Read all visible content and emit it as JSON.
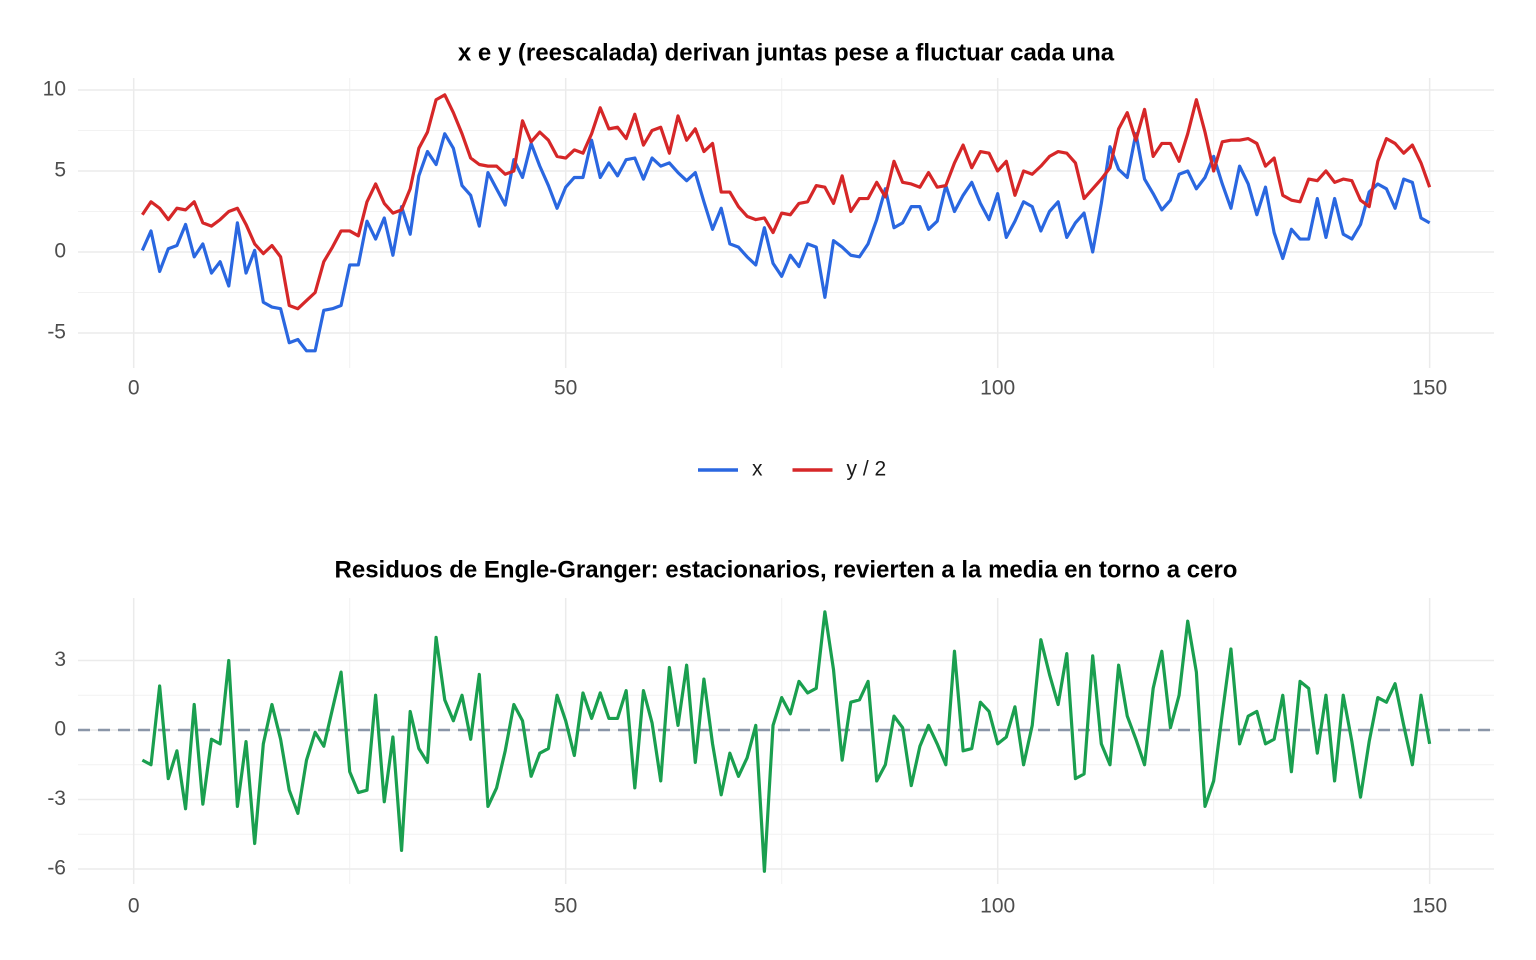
{
  "chart_data": [
    {
      "type": "line",
      "title": "x e y (reescalada) derivan juntas pese a fluctuar cada una",
      "x": [
        1,
        2,
        3,
        4,
        5,
        6,
        7,
        8,
        9,
        10,
        11,
        12,
        13,
        14,
        15,
        16,
        17,
        18,
        19,
        20,
        21,
        22,
        23,
        24,
        25,
        26,
        27,
        28,
        29,
        30,
        31,
        32,
        33,
        34,
        35,
        36,
        37,
        38,
        39,
        40,
        41,
        42,
        43,
        44,
        45,
        46,
        47,
        48,
        49,
        50,
        51,
        52,
        53,
        54,
        55,
        56,
        57,
        58,
        59,
        60,
        61,
        62,
        63,
        64,
        65,
        66,
        67,
        68,
        69,
        70,
        71,
        72,
        73,
        74,
        75,
        76,
        77,
        78,
        79,
        80,
        81,
        82,
        83,
        84,
        85,
        86,
        87,
        88,
        89,
        90,
        91,
        92,
        93,
        94,
        95,
        96,
        97,
        98,
        99,
        100,
        101,
        102,
        103,
        104,
        105,
        106,
        107,
        108,
        109,
        110,
        111,
        112,
        113,
        114,
        115,
        116,
        117,
        118,
        119,
        120,
        121,
        122,
        123,
        124,
        125,
        126,
        127,
        128,
        129,
        130,
        131,
        132,
        133,
        134,
        135,
        136,
        137,
        138,
        139,
        140,
        141,
        142,
        143,
        144,
        145,
        146,
        147,
        148,
        149,
        150
      ],
      "series": [
        {
          "name": "x",
          "color": "#2a67e0",
          "values": [
            0.1,
            1.3,
            -1.2,
            0.2,
            0.4,
            1.7,
            -0.3,
            0.5,
            -1.3,
            -0.6,
            -2.1,
            1.8,
            -1.3,
            0.1,
            -3.1,
            -3.4,
            -3.5,
            -5.6,
            -5.4,
            -6.1,
            -6.1,
            -3.6,
            -3.5,
            -3.3,
            -0.8,
            -0.8,
            1.9,
            0.8,
            2.1,
            -0.2,
            2.8,
            1.1,
            4.7,
            6.2,
            5.4,
            7.3,
            6.4,
            4.1,
            3.5,
            1.6,
            4.9,
            3.9,
            2.9,
            5.7,
            4.6,
            6.7,
            5.3,
            4.1,
            2.7,
            4.0,
            4.6,
            4.6,
            6.9,
            4.6,
            5.5,
            4.7,
            5.7,
            5.8,
            4.5,
            5.8,
            5.3,
            5.5,
            4.9,
            4.4,
            4.9,
            3.1,
            1.4,
            2.7,
            0.5,
            0.3,
            -0.3,
            -0.8,
            1.5,
            -0.7,
            -1.5,
            -0.2,
            -0.9,
            0.5,
            0.3,
            -2.8,
            0.7,
            0.3,
            -0.2,
            -0.3,
            0.5,
            2.0,
            3.9,
            1.5,
            1.8,
            2.8,
            2.8,
            1.4,
            1.9,
            4.1,
            2.5,
            3.5,
            4.3,
            3.0,
            2.0,
            3.6,
            0.9,
            1.9,
            3.1,
            2.8,
            1.3,
            2.5,
            3.1,
            0.9,
            1.8,
            2.4,
            0.0,
            3.0,
            6.5,
            5.1,
            4.6,
            7.3,
            4.5,
            3.6,
            2.6,
            3.2,
            4.8,
            5.0,
            3.9,
            4.6,
            5.9,
            4.2,
            2.7,
            5.3,
            4.2,
            2.3,
            4.0,
            1.2,
            -0.4,
            1.4,
            0.8,
            0.8,
            3.3,
            0.9,
            3.3,
            1.1,
            0.8,
            1.7,
            3.7,
            4.2,
            3.9,
            2.7,
            4.5,
            4.3,
            2.1,
            1.8
          ]
        },
        {
          "name": "y / 2",
          "color": "#d62728",
          "values": [
            2.3,
            3.1,
            2.7,
            2.0,
            2.7,
            2.6,
            3.1,
            1.8,
            1.6,
            2.0,
            2.5,
            2.7,
            1.7,
            0.5,
            -0.1,
            0.4,
            -0.3,
            -3.3,
            -3.5,
            -3.0,
            -2.5,
            -0.6,
            0.3,
            1.3,
            1.3,
            1.0,
            3.1,
            4.2,
            3.0,
            2.4,
            2.6,
            3.9,
            6.4,
            7.4,
            9.4,
            9.7,
            8.6,
            7.3,
            5.8,
            5.4,
            5.3,
            5.3,
            4.8,
            5.0,
            8.1,
            6.8,
            7.4,
            6.9,
            5.9,
            5.8,
            6.3,
            6.1,
            7.3,
            8.9,
            7.6,
            7.7,
            7.0,
            8.5,
            6.6,
            7.5,
            7.7,
            6.1,
            8.4,
            6.9,
            7.6,
            6.2,
            6.7,
            3.7,
            3.7,
            2.8,
            2.2,
            2.0,
            2.1,
            1.2,
            2.4,
            2.3,
            3.0,
            3.1,
            4.1,
            4.0,
            3.0,
            4.7,
            2.5,
            3.3,
            3.3,
            4.3,
            3.4,
            5.6,
            4.3,
            4.2,
            4.0,
            4.9,
            4.0,
            4.1,
            5.5,
            6.6,
            5.2,
            6.2,
            6.1,
            5.0,
            5.6,
            3.5,
            5.0,
            4.8,
            5.3,
            5.9,
            6.2,
            6.1,
            5.5,
            3.3,
            3.9,
            4.5,
            5.2,
            7.6,
            8.6,
            6.9,
            8.8,
            5.9,
            6.7,
            6.7,
            5.6,
            7.3,
            9.4,
            7.4,
            5.0,
            6.8,
            6.9,
            6.9,
            7.0,
            6.7,
            5.3,
            5.8,
            3.5,
            3.2,
            3.1,
            4.5,
            4.4,
            5.0,
            4.3,
            4.5,
            4.4,
            3.2,
            2.8,
            5.6,
            7.0,
            6.7,
            6.1,
            6.6,
            5.5,
            4.0
          ]
        }
      ],
      "xlim": [
        -6.45,
        157.45
      ],
      "xticks": [
        0,
        50,
        100,
        150
      ],
      "ylim": [
        -7.16,
        10.74
      ],
      "yticks": [
        -5,
        0,
        5,
        10
      ],
      "grid": true,
      "legend": "bottom"
    },
    {
      "type": "line",
      "title": "Residuos de Engle-Granger: estacionarios, revierten a la media en torno a cero",
      "x": [
        1,
        2,
        3,
        4,
        5,
        6,
        7,
        8,
        9,
        10,
        11,
        12,
        13,
        14,
        15,
        16,
        17,
        18,
        19,
        20,
        21,
        22,
        23,
        24,
        25,
        26,
        27,
        28,
        29,
        30,
        31,
        32,
        33,
        34,
        35,
        36,
        37,
        38,
        39,
        40,
        41,
        42,
        43,
        44,
        45,
        46,
        47,
        48,
        49,
        50,
        51,
        52,
        53,
        54,
        55,
        56,
        57,
        58,
        59,
        60,
        61,
        62,
        63,
        64,
        65,
        66,
        67,
        68,
        69,
        70,
        71,
        72,
        73,
        74,
        75,
        76,
        77,
        78,
        79,
        80,
        81,
        82,
        83,
        84,
        85,
        86,
        87,
        88,
        89,
        90,
        91,
        92,
        93,
        94,
        95,
        96,
        97,
        98,
        99,
        100,
        101,
        102,
        103,
        104,
        105,
        106,
        107,
        108,
        109,
        110,
        111,
        112,
        113,
        114,
        115,
        116,
        117,
        118,
        119,
        120,
        121,
        122,
        123,
        124,
        125,
        126,
        127,
        128,
        129,
        130,
        131,
        132,
        133,
        134,
        135,
        136,
        137,
        138,
        139,
        140,
        141,
        142,
        143,
        144,
        145,
        146,
        147,
        148,
        149,
        150
      ],
      "series": [
        {
          "color": "#1a9f4f",
          "values": [
            -1.3,
            -1.5,
            1.9,
            -2.1,
            -0.9,
            -3.4,
            1.1,
            -3.2,
            -0.4,
            -0.6,
            3.0,
            -3.3,
            -0.5,
            -4.9,
            -0.6,
            1.1,
            -0.4,
            -2.6,
            -3.6,
            -1.3,
            -0.1,
            -0.7,
            0.9,
            2.5,
            -1.8,
            -2.7,
            -2.6,
            1.5,
            -3.1,
            -0.3,
            -5.2,
            0.8,
            -0.8,
            -1.4,
            4.0,
            1.3,
            0.4,
            1.5,
            -0.4,
            2.4,
            -3.3,
            -2.5,
            -0.9,
            1.1,
            0.4,
            -2.0,
            -1.0,
            -0.8,
            1.5,
            0.4,
            -1.1,
            1.6,
            0.5,
            1.6,
            0.5,
            0.5,
            1.7,
            -2.5,
            1.7,
            0.3,
            -2.2,
            2.7,
            0.2,
            2.8,
            -1.4,
            2.2,
            -0.6,
            -2.8,
            -1.0,
            -2.0,
            -1.2,
            0.2,
            -6.1,
            0.2,
            1.4,
            0.7,
            2.1,
            1.6,
            1.8,
            5.1,
            2.6,
            -1.3,
            1.2,
            1.3,
            2.1,
            -2.2,
            -1.5,
            0.6,
            0.1,
            -2.4,
            -0.7,
            0.2,
            -0.6,
            -1.5,
            3.4,
            -0.9,
            -0.8,
            1.2,
            0.8,
            -0.6,
            -0.3,
            1.0,
            -1.5,
            0.2,
            3.9,
            2.4,
            1.1,
            3.3,
            -2.1,
            -1.9,
            3.2,
            -0.6,
            -1.5,
            2.8,
            0.6,
            -0.4,
            -1.5,
            1.8,
            3.4,
            0.1,
            1.5,
            4.7,
            2.5,
            -3.3,
            -2.2,
            0.7,
            3.5,
            -0.6,
            0.6,
            0.8,
            -0.6,
            -0.4,
            1.5,
            -1.8,
            2.1,
            1.8,
            -1.0,
            1.5,
            -2.2,
            1.5,
            -0.5,
            -2.9,
            -0.5,
            1.4,
            1.2,
            2.0,
            0.2,
            -1.5,
            1.5,
            -0.6
          ]
        }
      ],
      "hline": 0,
      "hline_color": "#8a96a8",
      "xlim": [
        -6.45,
        157.45
      ],
      "xticks": [
        0,
        50,
        100,
        150
      ],
      "ylim": [
        -6.65,
        5.7
      ],
      "yticks": [
        -6,
        -3,
        0,
        3
      ],
      "grid": true
    }
  ]
}
